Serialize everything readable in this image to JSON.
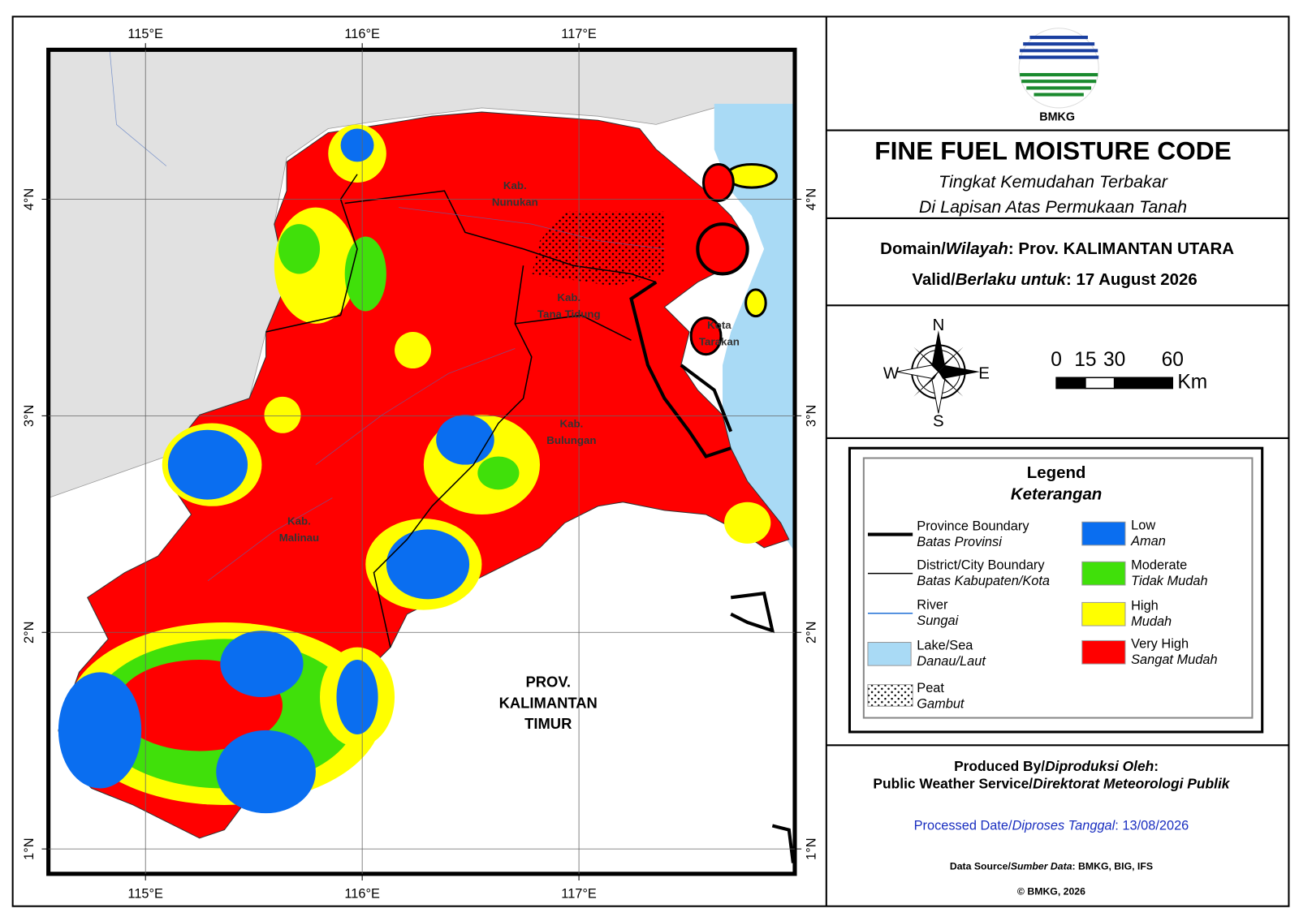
{
  "map": {
    "xlim": [
      114.552,
      117.996
    ],
    "ylim": [
      0.885,
      4.69
    ],
    "xticks": [
      {
        "value": 115,
        "label": "115°E"
      },
      {
        "value": 116,
        "label": "116°E"
      },
      {
        "value": 117,
        "label": "117°E"
      }
    ],
    "yticks": [
      {
        "value": 4,
        "label": "4°N"
      },
      {
        "value": 3,
        "label": "3°N"
      },
      {
        "value": 2,
        "label": "2°N"
      },
      {
        "value": 1,
        "label": "1°N"
      }
    ],
    "grid": true,
    "place_labels": [
      {
        "lines": [
          "Kab.",
          "Nunukan"
        ]
      },
      {
        "lines": [
          "Kab.",
          "Tana Tidung"
        ]
      },
      {
        "lines": [
          "Kota",
          "Tarakan"
        ]
      },
      {
        "lines": [
          "Kab.",
          "Bulungan"
        ]
      },
      {
        "lines": [
          "Kab.",
          "Malinau"
        ]
      },
      {
        "lines": [
          "PROV.",
          "KALIMANTAN",
          "TIMUR"
        ]
      }
    ]
  },
  "logo_text": "BMKG",
  "title": "FINE FUEL MOISTURE CODE",
  "subtitle": [
    "Tingkat Kemudahan Terbakar",
    "Di Lapisan Atas Permukaan Tanah"
  ],
  "domain": {
    "en": "Domain/",
    "id": "Wilayah",
    "value": ": Prov. KALIMANTAN UTARA"
  },
  "valid": {
    "en": "Valid/",
    "id": "Berlaku untuk",
    "value": ": 17 August 2026"
  },
  "compass": {
    "n": "N",
    "w": "W",
    "e": "E",
    "s": "S"
  },
  "scale_bar": {
    "ticks": [
      0,
      15,
      30,
      60
    ],
    "unit": "Km"
  },
  "legend": {
    "title": "Legend",
    "subtitle": "Keterangan",
    "items": [
      {
        "en": "Province Boundary",
        "id": "Batas Provinsi",
        "kind": "line",
        "color": "#000000"
      },
      {
        "en": "District/City Boundary",
        "id": "Batas Kabupaten/Kota",
        "kind": "thin-line",
        "color": "#000000"
      },
      {
        "en": "River",
        "id": "Sungai",
        "kind": "river",
        "color": "#1f6fd6"
      },
      {
        "en": "Lake/Sea",
        "id": "Danau/Laut",
        "kind": "box",
        "color": "#a9daf5"
      },
      {
        "en": "Peat",
        "id": "Gambut",
        "kind": "dots",
        "color": "#ffffff"
      },
      {
        "en": "Low",
        "id": "Aman",
        "kind": "box",
        "color": "#0a6ef0"
      },
      {
        "en": "Moderate",
        "id": "Tidak Mudah",
        "kind": "box",
        "color": "#40e00a"
      },
      {
        "en": "High",
        "id": "Mudah",
        "kind": "box",
        "color": "#ffff00"
      },
      {
        "en": "Very High",
        "id": "Sangat Mudah",
        "kind": "box",
        "color": "#ff0000"
      }
    ]
  },
  "produced": {
    "en": "Produced By/",
    "id": "Diproduksi Oleh",
    "end": ":",
    "org_en": "Public Weather Service/",
    "org_id": "Direktorat Meteorologi Publik"
  },
  "processed": {
    "en": "Processed Date/",
    "id": "Diproses Tanggal",
    "value": ": 13/08/2026"
  },
  "source": {
    "en": "Data Source/",
    "id": "Sumber Data",
    "value": ": BMKG, BIG, IFS"
  },
  "copyright": "© BMKG, 2026"
}
